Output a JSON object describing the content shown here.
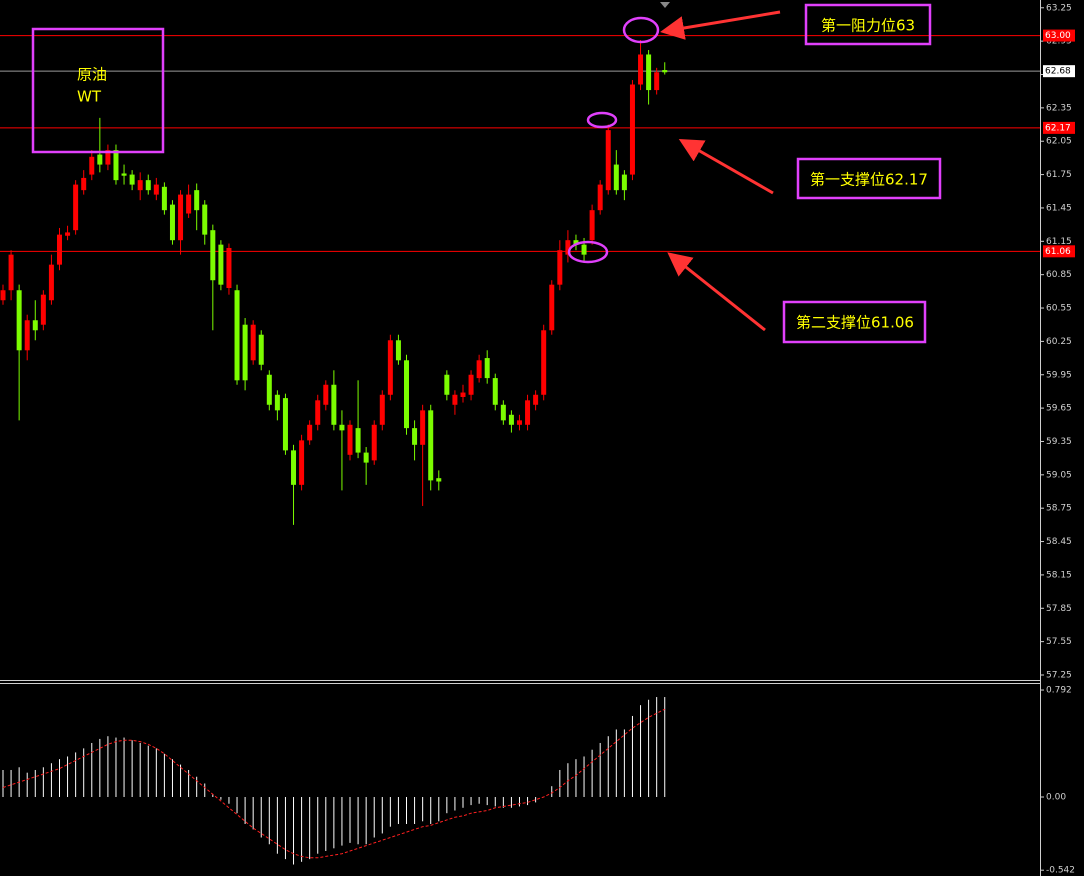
{
  "chart_data": [
    {
      "type": "candlestick",
      "title": "原油",
      "subtitle": "WT",
      "up_color": "#ff0000",
      "down_color": "#7cfc00",
      "open": [
        60.62,
        60.71,
        60.71,
        60.17,
        60.44,
        60.4,
        60.62,
        60.94,
        61.2,
        61.25,
        61.61,
        61.75,
        61.93,
        61.84,
        61.97,
        61.76,
        61.75,
        61.61,
        61.7,
        61.57,
        61.64,
        61.48,
        61.16,
        61.4,
        61.61,
        61.48,
        61.25,
        61.12,
        60.73,
        60.71,
        60.4,
        60.08,
        60.31,
        59.95,
        59.77,
        59.74,
        59.27,
        58.96,
        59.36,
        59.5,
        59.68,
        59.86,
        59.5,
        59.23,
        59.47,
        59.25,
        59.18,
        59.5,
        59.77,
        60.26,
        60.08,
        59.47,
        59.32,
        59.63,
        59.02,
        59.95,
        59.68,
        59.75,
        59.77,
        59.92,
        60.1,
        59.92,
        59.68,
        59.59,
        59.5,
        59.5,
        59.68,
        59.77,
        60.35,
        60.76,
        61.03,
        61.16,
        61.12,
        61.16,
        61.43,
        61.61,
        61.84,
        61.75,
        61.75,
        62.56,
        62.83,
        62.51,
        62.69
      ],
      "high": [
        60.76,
        61.07,
        60.76,
        60.49,
        60.62,
        60.71,
        61.03,
        61.27,
        61.29,
        61.7,
        61.79,
        61.97,
        62.26,
        62.02,
        62.02,
        61.84,
        61.79,
        61.77,
        61.75,
        61.72,
        61.68,
        61.52,
        61.61,
        61.66,
        61.67,
        61.52,
        61.3,
        61.16,
        61.13,
        60.76,
        60.46,
        60.44,
        60.35,
        59.99,
        59.81,
        59.78,
        59.32,
        59.41,
        59.54,
        59.77,
        59.9,
        59.99,
        59.63,
        59.54,
        59.9,
        59.3,
        59.54,
        59.81,
        60.31,
        60.31,
        60.13,
        59.54,
        59.68,
        59.68,
        59.09,
        59.99,
        59.81,
        59.86,
        59.99,
        60.13,
        60.17,
        59.96,
        59.72,
        59.63,
        59.59,
        59.77,
        59.81,
        60.4,
        60.8,
        61.16,
        61.25,
        61.21,
        61.18,
        61.48,
        61.7,
        62.2,
        61.97,
        61.79,
        62.6,
        62.96,
        62.87,
        62.71,
        62.76
      ],
      "low": [
        60.58,
        60.62,
        59.54,
        60.08,
        60.26,
        60.35,
        60.58,
        60.89,
        61.16,
        61.21,
        61.57,
        61.7,
        61.77,
        61.79,
        61.66,
        61.66,
        61.61,
        61.52,
        61.57,
        61.52,
        61.39,
        61.12,
        61.03,
        61.36,
        61.25,
        61.12,
        60.35,
        60.71,
        60.67,
        59.86,
        59.81,
        60.04,
        59.99,
        59.63,
        59.54,
        59.23,
        58.6,
        58.91,
        59.32,
        59.45,
        59.63,
        59.45,
        58.91,
        59.18,
        59.2,
        58.96,
        59.14,
        59.45,
        59.72,
        60.04,
        59.41,
        59.18,
        58.77,
        58.91,
        58.91,
        59.72,
        59.59,
        59.7,
        59.72,
        59.88,
        59.87,
        59.63,
        59.5,
        59.43,
        59.45,
        59.45,
        59.63,
        59.72,
        60.31,
        60.71,
        60.96,
        61.07,
        60.96,
        61.12,
        61.39,
        61.57,
        61.57,
        61.52,
        61.7,
        62.51,
        62.38,
        62.47,
        62.65
      ],
      "close": [
        60.71,
        61.03,
        60.17,
        60.44,
        60.35,
        60.67,
        60.94,
        61.21,
        61.23,
        61.66,
        61.72,
        61.91,
        61.84,
        61.97,
        61.7,
        61.74,
        61.66,
        61.7,
        61.61,
        61.66,
        61.43,
        61.16,
        61.57,
        61.57,
        61.43,
        61.21,
        60.8,
        60.76,
        61.09,
        59.9,
        59.9,
        60.4,
        60.04,
        59.68,
        59.63,
        59.27,
        58.96,
        59.36,
        59.5,
        59.72,
        59.86,
        59.5,
        59.45,
        59.5,
        59.25,
        59.16,
        59.5,
        59.77,
        60.26,
        60.08,
        59.47,
        59.32,
        59.63,
        59.0,
        58.99,
        59.77,
        59.77,
        59.79,
        59.95,
        60.08,
        59.92,
        59.68,
        59.54,
        59.5,
        59.54,
        59.72,
        59.77,
        60.35,
        60.76,
        61.07,
        61.16,
        61.12,
        61.03,
        61.43,
        61.66,
        62.15,
        61.61,
        61.61,
        62.56,
        62.83,
        62.51,
        62.67,
        62.67
      ],
      "ylim": [
        57.205,
        63.32
      ],
      "yticks": [
        63.25,
        62.95,
        62.65,
        62.35,
        62.05,
        61.75,
        61.45,
        61.15,
        60.85,
        60.55,
        60.25,
        59.95,
        59.65,
        59.35,
        59.05,
        58.75,
        58.45,
        58.15,
        57.85,
        57.55,
        57.25
      ],
      "hlines": [
        {
          "value": 63,
          "label": "63.00",
          "color": "#ff0000"
        },
        {
          "value": 62.17,
          "label": "62.17",
          "color": "#ff0000"
        },
        {
          "value": 61.06,
          "label": "61.06",
          "color": "#ff0000"
        },
        {
          "value": 62.68,
          "label": "62.68",
          "color": "#9a9a9a"
        }
      ],
      "annotations": [
        "第一阻力位63",
        "第一支撑位62.17",
        "第二支撑位61.06"
      ]
    },
    {
      "type": "macd",
      "histogram_color": "#ffffff",
      "signal_color": "#ff2020",
      "histogram": [
        0.2,
        0.2,
        0.22,
        0.18,
        0.2,
        0.22,
        0.25,
        0.28,
        0.3,
        0.33,
        0.36,
        0.4,
        0.43,
        0.45,
        0.44,
        0.44,
        0.42,
        0.4,
        0.38,
        0.36,
        0.32,
        0.28,
        0.24,
        0.2,
        0.15,
        0.1,
        0.02,
        -0.02,
        -0.05,
        -0.12,
        -0.2,
        -0.24,
        -0.3,
        -0.35,
        -0.42,
        -0.46,
        -0.5,
        -0.48,
        -0.46,
        -0.42,
        -0.4,
        -0.38,
        -0.36,
        -0.34,
        -0.35,
        -0.35,
        -0.3,
        -0.27,
        -0.22,
        -0.2,
        -0.2,
        -0.2,
        -0.18,
        -0.2,
        -0.18,
        -0.12,
        -0.1,
        -0.08,
        -0.06,
        -0.05,
        -0.06,
        -0.07,
        -0.08,
        -0.08,
        -0.07,
        -0.06,
        -0.04,
        0.0,
        0.08,
        0.2,
        0.25,
        0.28,
        0.3,
        0.35,
        0.4,
        0.45,
        0.5,
        0.5,
        0.6,
        0.68,
        0.72,
        0.74,
        0.74
      ],
      "signal": [
        0.07,
        0.09,
        0.11,
        0.13,
        0.15,
        0.17,
        0.19,
        0.21,
        0.24,
        0.27,
        0.3,
        0.33,
        0.36,
        0.39,
        0.41,
        0.42,
        0.42,
        0.41,
        0.39,
        0.36,
        0.32,
        0.27,
        0.22,
        0.17,
        0.12,
        0.07,
        0.02,
        -0.03,
        -0.08,
        -0.13,
        -0.18,
        -0.23,
        -0.27,
        -0.31,
        -0.35,
        -0.39,
        -0.42,
        -0.44,
        -0.45,
        -0.45,
        -0.44,
        -0.43,
        -0.42,
        -0.4,
        -0.38,
        -0.36,
        -0.34,
        -0.32,
        -0.3,
        -0.28,
        -0.26,
        -0.24,
        -0.22,
        -0.21,
        -0.19,
        -0.17,
        -0.15,
        -0.14,
        -0.12,
        -0.11,
        -0.1,
        -0.08,
        -0.07,
        -0.06,
        -0.05,
        -0.04,
        -0.02,
        0.0,
        0.03,
        0.07,
        0.12,
        0.16,
        0.21,
        0.26,
        0.31,
        0.36,
        0.41,
        0.46,
        0.51,
        0.55,
        0.59,
        0.62,
        0.65
      ],
      "ylim": [
        -0.585,
        0.844
      ],
      "yticks": [
        0.792,
        {
          "value": 0,
          "label": "0.00"
        },
        -0.542
      ]
    }
  ]
}
